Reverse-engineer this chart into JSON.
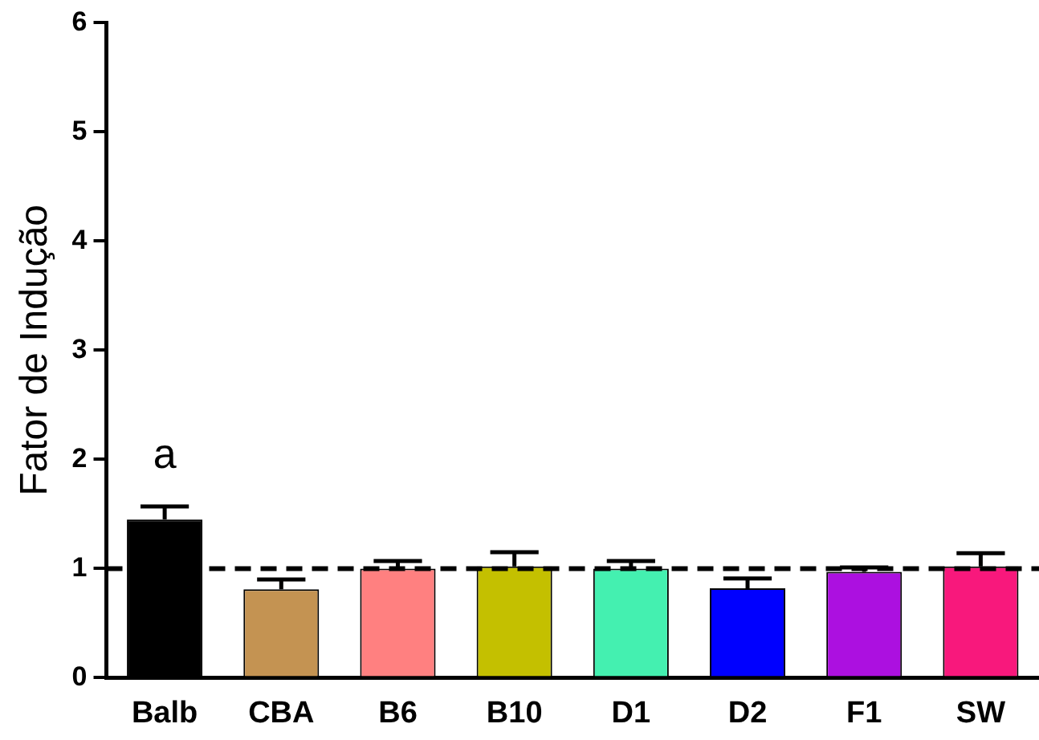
{
  "chart_data": {
    "type": "bar",
    "ylabel": "Fator de Indução",
    "categories": [
      "Balb",
      "CBA",
      "B6",
      "B10",
      "D1",
      "D2",
      "F1",
      "SW"
    ],
    "values": [
      1.45,
      0.81,
      1.0,
      1.02,
      1.0,
      0.82,
      0.97,
      1.02
    ],
    "errors": [
      [
        1.45,
        1.57
      ],
      [
        0.81,
        0.9
      ],
      [
        1.0,
        1.07
      ],
      [
        1.02,
        1.15
      ],
      [
        1.0,
        1.07
      ],
      [
        0.82,
        0.91
      ],
      [
        0.97,
        1.01
      ],
      [
        1.02,
        1.14
      ]
    ],
    "colors": [
      "#000000",
      "#c49352",
      "#ff8080",
      "#c4c000",
      "#44f0b0",
      "#0000ff",
      "#ac10e0",
      "#f8187c"
    ],
    "ylim": [
      0,
      6
    ],
    "yticks": [
      0,
      1,
      2,
      3,
      4,
      5,
      6
    ],
    "grid": false,
    "legend": false,
    "ref_lines": [
      {
        "axis": "y",
        "value": 1,
        "line_style": "dashed",
        "color": "#000000"
      }
    ],
    "annotations": [
      "a"
    ]
  }
}
